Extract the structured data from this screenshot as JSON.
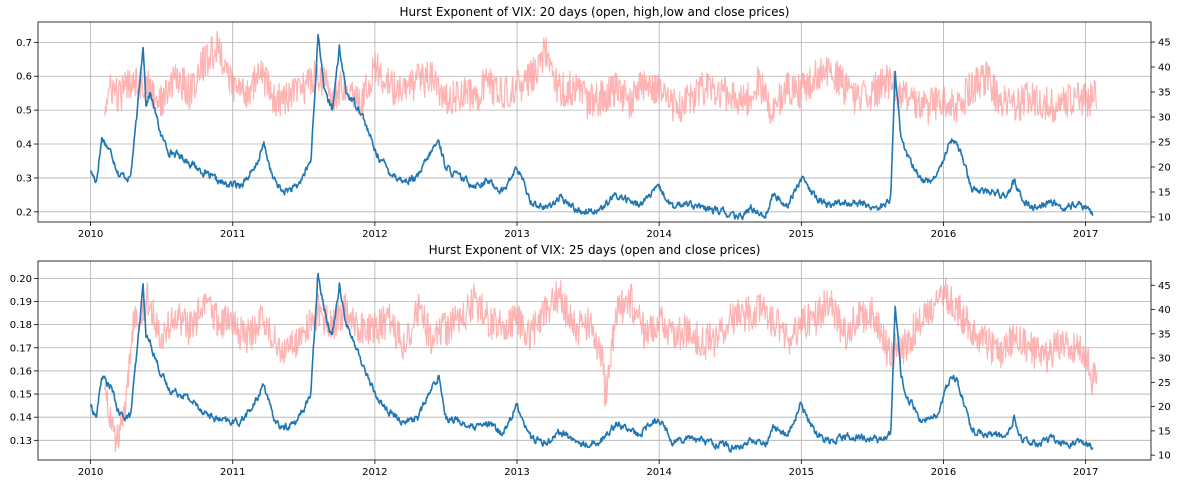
{
  "colors": {
    "hurst": "#1f77b4",
    "vix": "#ff9999",
    "grid": "#b0b0b0",
    "axis": "#000000"
  },
  "chart_data": [
    {
      "type": "line",
      "title": "Hurst Exponent of VIX: 20 days (open, high,low and close prices)",
      "xlabel": "",
      "ylabel": "",
      "x_ticks": [
        "2010",
        "2011",
        "2012",
        "2013",
        "2014",
        "2015",
        "2016",
        "2017"
      ],
      "xlim": [
        2009.63,
        2017.46
      ],
      "y_left_ticks": [
        "0.2",
        "0.3",
        "0.4",
        "0.5",
        "0.6",
        "0.7"
      ],
      "y_left_lim": [
        0.17,
        0.76
      ],
      "y_right_ticks": [
        "10",
        "15",
        "20",
        "25",
        "30",
        "35",
        "40",
        "45"
      ],
      "y_right_lim": [
        9,
        49
      ],
      "grid": true,
      "legend": "none",
      "series": [
        {
          "axis": "left",
          "color": "#1f77b4",
          "x": [
            2010.0,
            2010.04,
            2010.08,
            2010.15,
            2010.2,
            2010.28,
            2010.33,
            2010.37,
            2010.39,
            2010.42,
            2010.5,
            2010.55,
            2010.65,
            2010.75,
            2010.85,
            2010.95,
            2011.05,
            2011.15,
            2011.22,
            2011.28,
            2011.35,
            2011.45,
            2011.55,
            2011.6,
            2011.65,
            2011.7,
            2011.75,
            2011.8,
            2011.9,
            2012.0,
            2012.1,
            2012.2,
            2012.3,
            2012.4,
            2012.45,
            2012.5,
            2012.6,
            2012.7,
            2012.8,
            2012.9,
            2013.0,
            2013.1,
            2013.2,
            2013.3,
            2013.45,
            2013.6,
            2013.7,
            2013.85,
            2014.0,
            2014.1,
            2014.2,
            2014.3,
            2014.45,
            2014.55,
            2014.65,
            2014.75,
            2014.8,
            2014.9,
            2015.0,
            2015.1,
            2015.2,
            2015.3,
            2015.45,
            2015.55,
            2015.63,
            2015.66,
            2015.7,
            2015.75,
            2015.85,
            2015.95,
            2016.05,
            2016.1,
            2016.2,
            2016.3,
            2016.45,
            2016.5,
            2016.55,
            2016.65,
            2016.75,
            2016.85,
            2016.95,
            2017.05
          ],
          "y": [
            0.32,
            0.29,
            0.42,
            0.37,
            0.31,
            0.3,
            0.5,
            0.7,
            0.52,
            0.55,
            0.42,
            0.38,
            0.36,
            0.33,
            0.3,
            0.28,
            0.28,
            0.32,
            0.4,
            0.3,
            0.26,
            0.27,
            0.35,
            0.72,
            0.55,
            0.5,
            0.68,
            0.55,
            0.5,
            0.38,
            0.32,
            0.29,
            0.3,
            0.38,
            0.41,
            0.33,
            0.3,
            0.28,
            0.29,
            0.26,
            0.33,
            0.23,
            0.21,
            0.24,
            0.2,
            0.21,
            0.25,
            0.22,
            0.27,
            0.21,
            0.23,
            0.21,
            0.2,
            0.18,
            0.21,
            0.19,
            0.25,
            0.22,
            0.3,
            0.24,
            0.22,
            0.23,
            0.22,
            0.21,
            0.24,
            0.62,
            0.42,
            0.36,
            0.29,
            0.3,
            0.42,
            0.4,
            0.27,
            0.26,
            0.25,
            0.29,
            0.24,
            0.21,
            0.23,
            0.21,
            0.22,
            0.2
          ]
        },
        {
          "axis": "right",
          "color": "#ff9999",
          "x": [
            2010.1,
            2010.15,
            2010.2,
            2010.3,
            2010.4,
            2010.5,
            2010.6,
            2010.7,
            2010.8,
            2010.9,
            2011.0,
            2011.1,
            2011.2,
            2011.3,
            2011.4,
            2011.5,
            2011.6,
            2011.7,
            2011.8,
            2011.9,
            2012.0,
            2012.1,
            2012.2,
            2012.3,
            2012.4,
            2012.5,
            2012.6,
            2012.7,
            2012.8,
            2012.9,
            2013.0,
            2013.1,
            2013.2,
            2013.3,
            2013.4,
            2013.5,
            2013.6,
            2013.7,
            2013.8,
            2013.9,
            2014.0,
            2014.1,
            2014.2,
            2014.3,
            2014.4,
            2014.5,
            2014.6,
            2014.7,
            2014.8,
            2014.9,
            2015.0,
            2015.1,
            2015.2,
            2015.3,
            2015.4,
            2015.5,
            2015.6,
            2015.7,
            2015.8,
            2015.9,
            2016.0,
            2016.1,
            2016.2,
            2016.3,
            2016.4,
            2016.5,
            2016.6,
            2016.7,
            2016.8,
            2016.9,
            2017.0,
            2017.08
          ],
          "y": [
            32,
            36,
            34,
            38,
            36,
            33,
            38,
            35,
            41,
            44,
            36,
            35,
            39,
            33,
            34,
            36,
            39,
            34,
            37,
            33,
            40,
            36,
            35,
            37,
            38,
            33,
            35,
            34,
            37,
            34,
            36,
            38,
            43,
            35,
            36,
            33,
            34,
            36,
            33,
            37,
            35,
            32,
            33,
            36,
            34,
            35,
            33,
            37,
            31,
            36,
            35,
            38,
            40,
            36,
            33,
            35,
            37,
            34,
            33,
            32,
            34,
            32,
            36,
            38,
            33,
            32,
            34,
            33,
            32,
            34,
            33,
            34
          ]
        }
      ]
    },
    {
      "type": "line",
      "title": "Hurst Exponent of VIX: 25 days (open and close prices)",
      "xlabel": "",
      "ylabel": "",
      "x_ticks": [
        "2010",
        "2011",
        "2012",
        "2013",
        "2014",
        "2015",
        "2016",
        "2017"
      ],
      "xlim": [
        2009.63,
        2017.46
      ],
      "y_left_ticks": [
        "0.13",
        "0.14",
        "0.15",
        "0.16",
        "0.17",
        "0.18",
        "0.19",
        "0.20"
      ],
      "y_left_lim": [
        0.1215,
        0.2075
      ],
      "y_right_ticks": [
        "10",
        "15",
        "20",
        "25",
        "30",
        "35",
        "40",
        "45"
      ],
      "y_right_lim": [
        9,
        50
      ],
      "grid": true,
      "legend": "none",
      "series": [
        {
          "axis": "left",
          "color": "#1f77b4",
          "x": [
            2010.0,
            2010.04,
            2010.08,
            2010.15,
            2010.2,
            2010.28,
            2010.33,
            2010.37,
            2010.39,
            2010.42,
            2010.5,
            2010.55,
            2010.65,
            2010.75,
            2010.85,
            2010.95,
            2011.05,
            2011.15,
            2011.22,
            2011.28,
            2011.35,
            2011.45,
            2011.55,
            2011.6,
            2011.65,
            2011.7,
            2011.75,
            2011.8,
            2011.9,
            2012.0,
            2012.1,
            2012.2,
            2012.3,
            2012.4,
            2012.45,
            2012.5,
            2012.6,
            2012.7,
            2012.8,
            2012.9,
            2013.0,
            2013.1,
            2013.2,
            2013.3,
            2013.45,
            2013.6,
            2013.7,
            2013.85,
            2014.0,
            2014.1,
            2014.2,
            2014.3,
            2014.45,
            2014.55,
            2014.65,
            2014.75,
            2014.8,
            2014.9,
            2015.0,
            2015.1,
            2015.2,
            2015.3,
            2015.45,
            2015.55,
            2015.63,
            2015.66,
            2015.7,
            2015.75,
            2015.85,
            2015.95,
            2016.05,
            2016.1,
            2016.2,
            2016.3,
            2016.45,
            2016.5,
            2016.55,
            2016.65,
            2016.75,
            2016.85,
            2016.95,
            2017.05
          ],
          "y": [
            0.145,
            0.14,
            0.158,
            0.152,
            0.141,
            0.14,
            0.17,
            0.198,
            0.175,
            0.172,
            0.158,
            0.152,
            0.15,
            0.145,
            0.14,
            0.138,
            0.138,
            0.145,
            0.155,
            0.14,
            0.135,
            0.138,
            0.15,
            0.203,
            0.185,
            0.175,
            0.198,
            0.18,
            0.165,
            0.15,
            0.142,
            0.138,
            0.14,
            0.152,
            0.158,
            0.14,
            0.138,
            0.135,
            0.137,
            0.133,
            0.145,
            0.131,
            0.129,
            0.134,
            0.128,
            0.13,
            0.138,
            0.132,
            0.14,
            0.129,
            0.132,
            0.13,
            0.128,
            0.126,
            0.13,
            0.128,
            0.136,
            0.132,
            0.145,
            0.133,
            0.13,
            0.132,
            0.131,
            0.13,
            0.133,
            0.19,
            0.158,
            0.148,
            0.138,
            0.14,
            0.158,
            0.155,
            0.134,
            0.133,
            0.131,
            0.14,
            0.13,
            0.128,
            0.131,
            0.128,
            0.13,
            0.127
          ]
        },
        {
          "axis": "right",
          "color": "#ff9999",
          "x": [
            2010.1,
            2010.15,
            2010.18,
            2010.25,
            2010.3,
            2010.4,
            2010.5,
            2010.6,
            2010.7,
            2010.8,
            2010.9,
            2011.0,
            2011.1,
            2011.2,
            2011.3,
            2011.4,
            2011.5,
            2011.6,
            2011.7,
            2011.8,
            2011.9,
            2012.0,
            2012.1,
            2012.2,
            2012.3,
            2012.4,
            2012.5,
            2012.6,
            2012.7,
            2012.8,
            2012.9,
            2013.0,
            2013.1,
            2013.2,
            2013.3,
            2013.4,
            2013.5,
            2013.6,
            2013.62,
            2013.7,
            2013.8,
            2013.9,
            2014.0,
            2014.1,
            2014.2,
            2014.3,
            2014.4,
            2014.5,
            2014.6,
            2014.7,
            2014.8,
            2014.9,
            2015.0,
            2015.1,
            2015.2,
            2015.3,
            2015.4,
            2015.5,
            2015.6,
            2015.7,
            2015.8,
            2015.9,
            2016.0,
            2016.05,
            2016.1,
            2016.2,
            2016.3,
            2016.4,
            2016.5,
            2016.6,
            2016.7,
            2016.8,
            2016.9,
            2017.0,
            2017.05,
            2017.08
          ],
          "y": [
            25,
            16,
            12,
            20,
            38,
            42,
            35,
            38,
            36,
            41,
            38,
            37,
            34,
            38,
            33,
            32,
            35,
            40,
            37,
            40,
            36,
            36,
            38,
            32,
            40,
            34,
            36,
            38,
            42,
            38,
            36,
            38,
            35,
            40,
            43,
            36,
            37,
            30,
            22,
            40,
            42,
            35,
            38,
            34,
            36,
            33,
            34,
            38,
            39,
            40,
            38,
            34,
            37,
            38,
            42,
            35,
            38,
            40,
            32,
            31,
            36,
            40,
            44,
            42,
            40,
            36,
            33,
            31,
            34,
            32,
            30,
            32,
            33,
            31,
            25,
            28
          ]
        }
      ]
    }
  ]
}
